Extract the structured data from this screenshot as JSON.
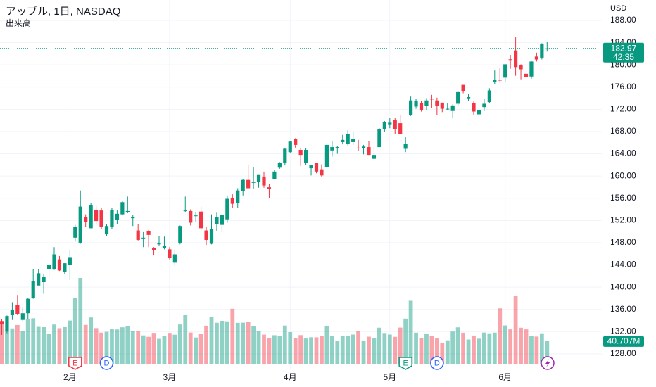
{
  "chart_data": {
    "type": "candlestick",
    "title": "アップル, 1日, NASDAQ",
    "currency": "USD",
    "categories": [
      null,
      null,
      null,
      null,
      null,
      null,
      null,
      null,
      null,
      null,
      null,
      null,
      null,
      "2月",
      null,
      null,
      null,
      null,
      null,
      null,
      null,
      null,
      null,
      null,
      null,
      null,
      null,
      null,
      null,
      null,
      null,
      null,
      "3月",
      null,
      null,
      null,
      null,
      null,
      null,
      null,
      null,
      null,
      null,
      null,
      null,
      null,
      null,
      null,
      null,
      null,
      null,
      null,
      null,
      null,
      null,
      "4月",
      null,
      null,
      null,
      null,
      null,
      null,
      null,
      null,
      null,
      null,
      null,
      null,
      null,
      null,
      null,
      null,
      null,
      null,
      "5月",
      null,
      null,
      null,
      null,
      null,
      null,
      null,
      null,
      null,
      null,
      null,
      null,
      null,
      null,
      null,
      null,
      null,
      null,
      null,
      null,
      null,
      "6月",
      null,
      null,
      null,
      null,
      null,
      null,
      null,
      null
    ],
    "open": [
      133.9,
      132.0,
      135.0,
      136.8,
      134.1,
      135.3,
      138.1,
      140.3,
      140.9,
      143.2,
      143.2,
      145.0,
      142.7,
      143.97,
      148.9,
      148.0,
      152.6,
      150.6,
      153.9,
      153.8,
      149.5,
      150.9,
      152.1,
      153.1,
      153.5,
      152.4,
      150.2,
      148.9,
      150.1,
      147.1,
      147.7,
      147.1,
      146.8,
      144.4,
      148.0,
      153.8,
      153.7,
      152.8,
      153.6,
      150.2,
      147.8,
      151.3,
      151.2,
      152.2,
      156.1,
      155.1,
      157.3,
      159.3,
      158.8,
      158.9,
      159.9,
      157.97,
      159.4,
      161.5,
      162.4,
      164.3,
      166.6,
      164.7,
      162.4,
      161.4,
      162.4,
      161.2,
      161.6,
      164.6,
      165.1,
      166.1,
      165.8,
      166.1,
      165.1,
      165.0,
      165.2,
      163.1,
      165.2,
      168.5,
      169.3,
      170.1,
      169.5,
      164.9,
      170.98,
      172.5,
      173.1,
      172.6,
      173.9,
      173.6,
      173.2,
      171.99,
      171.7,
      173.0,
      176.4,
      173.98,
      173.1,
      171.1,
      172.4,
      173.3,
      176.96,
      177.3,
      177.7,
      181.0,
      182.6,
      179.97,
      178.4,
      177.9,
      181.5,
      181.3,
      182.8
    ],
    "high": [
      134.3,
      134.9,
      137.3,
      138.6,
      136.3,
      138.0,
      143.3,
      143.2,
      142.4,
      144.3,
      147.2,
      145.6,
      144.3,
      146.6,
      151.2,
      157.4,
      153.1,
      155.2,
      154.6,
      154.3,
      151.3,
      154.3,
      153.8,
      155.5,
      156.3,
      153.0,
      151.3,
      149.9,
      150.3,
      147.2,
      149.2,
      149.1,
      147.2,
      146.7,
      151.1,
      156.3,
      154.0,
      153.5,
      154.5,
      150.9,
      153.1,
      153.4,
      153.2,
      156.5,
      156.7,
      157.8,
      159.4,
      162.1,
      161.6,
      160.3,
      160.8,
      158.5,
      161.1,
      162.5,
      165.0,
      166.3,
      166.8,
      165.1,
      164.96,
      162.0,
      162.4,
      162.1,
      165.8,
      166.3,
      165.4,
      167.4,
      168.2,
      167.9,
      166.5,
      165.6,
      166.3,
      165.3,
      168.6,
      169.9,
      170.5,
      170.4,
      170.9,
      167.0,
      174.3,
      173.9,
      173.5,
      174.0,
      174.6,
      174.1,
      173.2,
      173.1,
      172.9,
      175.2,
      176.4,
      174.7,
      173.4,
      172.4,
      173.9,
      175.8,
      178.99,
      179.4,
      180.1,
      181.8,
      184.95,
      180.1,
      181.2,
      180.8,
      182.2,
      183.9,
      184.15
    ],
    "low": [
      131.4,
      131.7,
      134.1,
      135.0,
      133.9,
      134.2,
      137.9,
      140.3,
      138.8,
      141.9,
      143.1,
      142.9,
      142.3,
      141.3,
      148.2,
      147.8,
      150.8,
      150.6,
      151.2,
      150.4,
      149.2,
      150.4,
      151.3,
      152.9,
      153.3,
      151.0,
      148.4,
      147.2,
      147.2,
      145.7,
      147.5,
      146.8,
      145.0,
      143.9,
      147.7,
      153.5,
      151.1,
      151.8,
      150.2,
      147.6,
      147.7,
      150.1,
      149.9,
      151.6,
      154.2,
      154.2,
      156.5,
      157.8,
      157.7,
      157.9,
      157.9,
      155.98,
      159.4,
      161.3,
      161.9,
      164.2,
      165.1,
      161.8,
      162.0,
      160.1,
      160.5,
      159.8,
      161.4,
      163.5,
      164.0,
      165.7,
      165.5,
      165.6,
      164.5,
      163.9,
      163.8,
      162.8,
      165.2,
      167.9,
      168.6,
      167.5,
      167.5,
      164.3,
      170.8,
      172.1,
      171.6,
      171.9,
      172.2,
      171.0,
      171.5,
      171.8,
      170.4,
      172.6,
      174.9,
      173.5,
      171.0,
      170.5,
      171.7,
      173.1,
      176.6,
      176.8,
      176.9,
      179.3,
      178.04,
      177.4,
      177.3,
      177.5,
      180.6,
      180.97,
      182.4
    ],
    "close": [
      133.4,
      134.8,
      135.9,
      135.2,
      135.3,
      137.9,
      141.1,
      142.5,
      141.9,
      144.0,
      145.9,
      143.0,
      144.3,
      145.4,
      150.8,
      154.5,
      151.7,
      154.7,
      151.9,
      150.9,
      151.0,
      153.9,
      153.2,
      155.3,
      153.7,
      152.6,
      148.5,
      148.9,
      149.4,
      146.7,
      147.9,
      147.4,
      145.3,
      145.9,
      151.0,
      153.8,
      151.6,
      152.9,
      150.6,
      148.5,
      150.5,
      152.6,
      153.0,
      155.9,
      155.0,
      157.4,
      159.3,
      157.8,
      158.9,
      160.3,
      158.3,
      157.65,
      160.8,
      162.4,
      164.9,
      166.2,
      165.6,
      163.8,
      164.7,
      162.0,
      160.8,
      160.1,
      165.6,
      165.2,
      165.2,
      166.5,
      167.6,
      166.7,
      165.0,
      165.3,
      163.8,
      163.8,
      168.4,
      169.7,
      169.6,
      168.5,
      167.5,
      165.8,
      173.6,
      173.5,
      171.8,
      173.6,
      173.8,
      172.6,
      172.1,
      172.1,
      172.7,
      175.1,
      175.2,
      174.2,
      171.6,
      171.8,
      173.0,
      175.4,
      177.3,
      177.25,
      180.1,
      180.95,
      179.6,
      179.2,
      177.8,
      180.6,
      180.96,
      183.8,
      182.97
    ],
    "up_color": "#089981",
    "down_color": "#f23645",
    "ylim": [
      125.2,
      191.67
    ],
    "yticks": [
      {
        "value": 128,
        "label": "128.00"
      },
      {
        "value": 132,
        "label": "132.00"
      },
      {
        "value": 136,
        "label": "136.00"
      },
      {
        "value": 140,
        "label": "140.00"
      },
      {
        "value": 144,
        "label": "144.00"
      },
      {
        "value": 148,
        "label": "148.00"
      },
      {
        "value": 152,
        "label": "152.00"
      },
      {
        "value": 156,
        "label": "156.00"
      },
      {
        "value": 160,
        "label": "160.00"
      },
      {
        "value": 164,
        "label": "164.00"
      },
      {
        "value": 168,
        "label": "168.00"
      },
      {
        "value": 172,
        "label": "172.00"
      },
      {
        "value": 176,
        "label": "176.00"
      },
      {
        "value": 180,
        "label": "180.00"
      },
      {
        "value": 184,
        "label": "184.00"
      },
      {
        "value": 188,
        "label": "188.00"
      }
    ],
    "grid": true,
    "last_price": 182.97,
    "countdown": "42:35",
    "volume": {
      "name": "出来高",
      "values": [
        71.4,
        57.8,
        63.6,
        69.7,
        58.3,
        80.2,
        81.8,
        66.4,
        65.8,
        54.1,
        70.6,
        64.0,
        65.9,
        77.7,
        118.3,
        154.4,
        69.9,
        83.3,
        64.1,
        56.0,
        57.4,
        62.2,
        61.7,
        65.6,
        68.2,
        59.1,
        58.9,
        51.0,
        48.4,
        55.5,
        44.9,
        50.5,
        55.5,
        52.2,
        70.7,
        87.6,
        56.2,
        47.2,
        53.8,
        68.5,
        84.5,
        73.7,
        77.2,
        76.3,
        98.9,
        73.6,
        73.9,
        75.7,
        67.6,
        59.2,
        52.4,
        45.99,
        51.3,
        49.5,
        68.7,
        56.98,
        46.3,
        51.5,
        45.4,
        47.7,
        47.6,
        50.1,
        68.4,
        49.4,
        41.5,
        49.9,
        49.9,
        52.5,
        58.3,
        41.9,
        48.7,
        45.5,
        64.9,
        55.3,
        52.5,
        48.4,
        65.1,
        81.2,
        113.3,
        55.9,
        45.6,
        53.7,
        49.5,
        45.5,
        37.3,
        42.1,
        57.95,
        65.5,
        55.8,
        43.6,
        50.7,
        45.1,
        56.1,
        54.8,
        55.96,
        99.6,
        68.9,
        61.9,
        121.9,
        64.8,
        61.9,
        50.2,
        48.9,
        54.8,
        40.707
      ],
      "last_label": "40.707M"
    },
    "events": [
      {
        "label": "E",
        "index": 14,
        "color": "#f23645"
      },
      {
        "label": "D",
        "index": 20,
        "color": "#2962ff"
      },
      {
        "label": "E",
        "index": 77,
        "color": "#089981"
      },
      {
        "label": "D",
        "index": 83,
        "color": "#2962ff"
      }
    ]
  }
}
